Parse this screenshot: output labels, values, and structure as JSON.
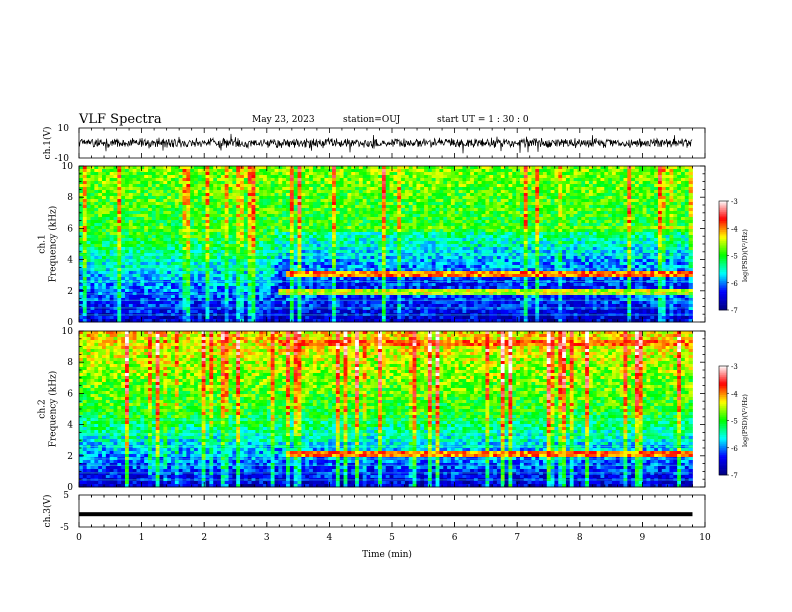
{
  "header": {
    "title": "VLF Spectra",
    "date": "May 23, 2023",
    "station": "station=OUJ",
    "start": "start  UT =   1 : 30 : 0"
  },
  "chart_data": [
    {
      "type": "line",
      "panel": "ch1-waveform",
      "ylabel": "ch.1(V)",
      "yticks": [
        "10",
        "-10"
      ],
      "ylim": [
        -10,
        10
      ],
      "x_range_min": [
        0,
        9.8
      ],
      "trace_color": "#000000",
      "approx_level": 0
    },
    {
      "type": "heatmap",
      "panel": "ch1-spectrogram",
      "ylabel_channel": "ch.1",
      "ylabel": "Frequency (kHz)",
      "yticks": [
        "0",
        "2",
        "4",
        "6",
        "8",
        "10"
      ],
      "ylim": [
        0,
        10
      ],
      "xlim": [
        0,
        10
      ],
      "data_extent_min": [
        0,
        9.8
      ],
      "colorbar": {
        "label": "log(PSD)(V²/Hz)",
        "ticks": [
          "-3",
          "-4",
          "-5",
          "-6",
          "-7"
        ],
        "range": [
          -7,
          -3
        ],
        "colormap": [
          "#00007f",
          "#0000ff",
          "#00ffff",
          "#00ff00",
          "#ffff00",
          "#ff0000",
          "#ffffff"
        ]
      },
      "features": [
        {
          "name": "band",
          "freq_khz": 3.0,
          "from_min": 3.3,
          "to_min": 9.8,
          "level": -4
        },
        {
          "name": "band",
          "freq_khz": 2.0,
          "from_min": 3.2,
          "to_min": 9.8,
          "level": -4.5
        },
        {
          "name": "band",
          "freq_khz": 6.0,
          "from_min": 3.2,
          "to_min": 9.8,
          "level": -5
        }
      ]
    },
    {
      "type": "heatmap",
      "panel": "ch2-spectrogram",
      "ylabel_channel": "ch.2",
      "ylabel": "Frequency (kHz)",
      "yticks": [
        "0",
        "2",
        "4",
        "6",
        "8",
        "10"
      ],
      "ylim": [
        0,
        10
      ],
      "xlim": [
        0,
        10
      ],
      "data_extent_min": [
        0,
        9.8
      ],
      "colorbar": {
        "label": "log(PSD)(V²/Hz)",
        "ticks": [
          "-3",
          "-4",
          "-5",
          "-6",
          "-7"
        ],
        "range": [
          -7,
          -3
        ],
        "colormap": [
          "#00007f",
          "#0000ff",
          "#00ffff",
          "#00ff00",
          "#ffff00",
          "#ff0000",
          "#ffffff"
        ]
      },
      "features": [
        {
          "name": "band",
          "freq_khz": 2.2,
          "from_min": 3.3,
          "to_min": 9.8,
          "level": -4
        },
        {
          "name": "band",
          "freq_khz": 9.2,
          "from_min": 3.2,
          "to_min": 9.8,
          "level": -4
        }
      ]
    },
    {
      "type": "line",
      "panel": "ch3-waveform",
      "ylabel": "ch.3(V)",
      "yticks": [
        "5",
        "-5"
      ],
      "ylim": [
        -5,
        5
      ],
      "x_range_min": [
        0,
        9.8
      ],
      "trace_color": "#000000",
      "approx_level": -1
    }
  ],
  "xaxis": {
    "label": "Time  (min)",
    "ticks": [
      "0",
      "1",
      "2",
      "3",
      "4",
      "5",
      "6",
      "7",
      "8",
      "9",
      "10"
    ],
    "range": [
      0,
      10
    ]
  }
}
